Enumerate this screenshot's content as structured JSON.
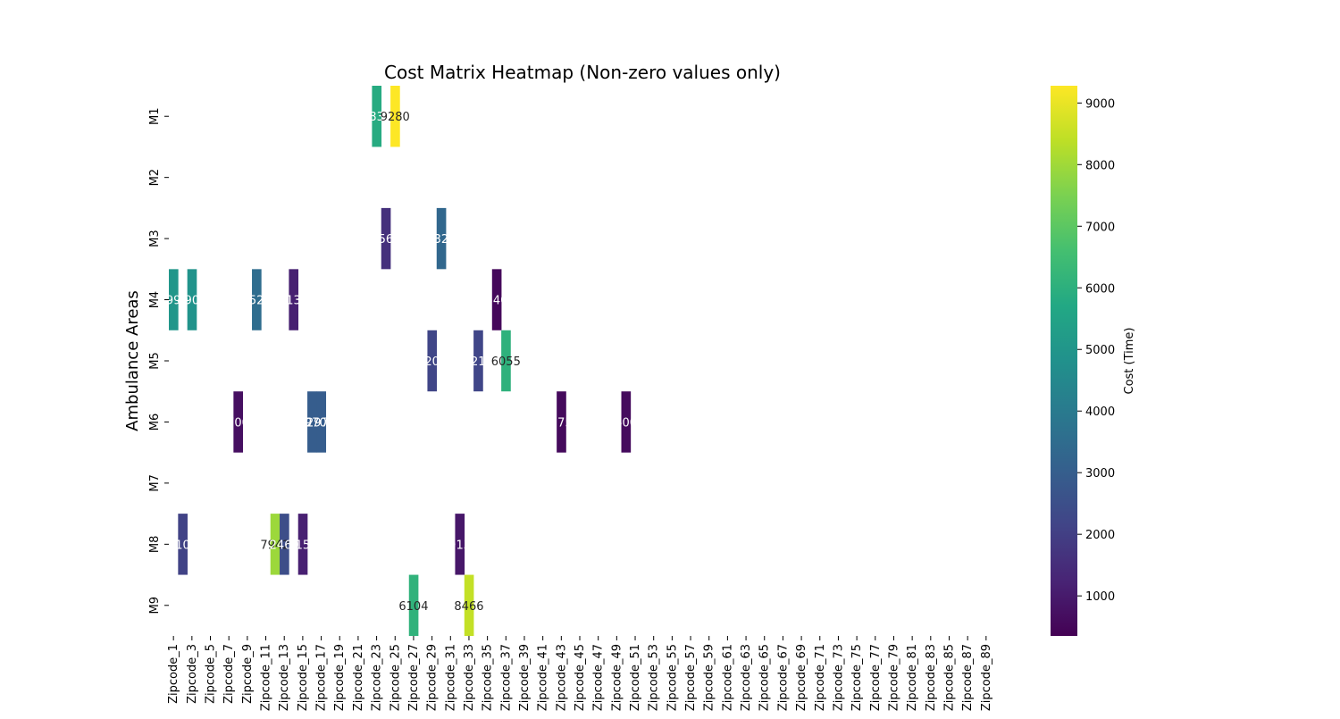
{
  "chart_data": {
    "type": "heatmap",
    "title": "Cost Matrix Heatmap (Non-zero values only)",
    "ylabel": "Ambulance Areas",
    "xlabel": "",
    "rows": [
      "M1",
      "M2",
      "M3",
      "M4",
      "M5",
      "M6",
      "M7",
      "M8",
      "M9"
    ],
    "columns_count": 89,
    "column_prefix": "Zipcode_",
    "xtick_labels": [
      "Zipcode_1",
      "Zipcode_3",
      "Zipcode_5",
      "Zipcode_7",
      "Zipcode_9",
      "Zipcode_11",
      "Zipcode_13",
      "Zipcode_15",
      "Zipcode_17",
      "Zipcode_19",
      "Zipcode_21",
      "Zipcode_23",
      "Zipcode_25",
      "Zipcode_27",
      "Zipcode_29",
      "Zipcode_31",
      "Zipcode_33",
      "Zipcode_35",
      "Zipcode_37",
      "Zipcode_39",
      "Zipcode_41",
      "Zipcode_43",
      "Zipcode_45",
      "Zipcode_47",
      "Zipcode_49",
      "Zipcode_51",
      "Zipcode_53",
      "Zipcode_55",
      "Zipcode_57",
      "Zipcode_59",
      "Zipcode_61",
      "Zipcode_63",
      "Zipcode_65",
      "Zipcode_67",
      "Zipcode_69",
      "Zipcode_71",
      "Zipcode_73",
      "Zipcode_75",
      "Zipcode_77",
      "Zipcode_79",
      "Zipcode_81",
      "Zipcode_83",
      "Zipcode_85",
      "Zipcode_87",
      "Zipcode_89"
    ],
    "cells": [
      {
        "row": "M1",
        "col": 23,
        "value": 5832
      },
      {
        "row": "M1",
        "col": 25,
        "value": 9280
      },
      {
        "row": "M3",
        "col": 24,
        "value": 1566
      },
      {
        "row": "M3",
        "col": 30,
        "value": 3328
      },
      {
        "row": "M4",
        "col": 1,
        "value": 4990
      },
      {
        "row": "M4",
        "col": 3,
        "value": 4902
      },
      {
        "row": "M4",
        "col": 10,
        "value": 3529
      },
      {
        "row": "M4",
        "col": 14,
        "value": 1130
      },
      {
        "row": "M4",
        "col": 36,
        "value": 540
      },
      {
        "row": "M5",
        "col": 29,
        "value": 2205
      },
      {
        "row": "M5",
        "col": 34,
        "value": 2214
      },
      {
        "row": "M5",
        "col": 37,
        "value": 6055
      },
      {
        "row": "M6",
        "col": 8,
        "value": 700
      },
      {
        "row": "M6",
        "col": 16,
        "value": 2970
      },
      {
        "row": "M6",
        "col": 17,
        "value": 2970
      },
      {
        "row": "M6",
        "col": 43,
        "value": 575
      },
      {
        "row": "M6",
        "col": 50,
        "value": 600
      },
      {
        "row": "M8",
        "col": 2,
        "value": 2107
      },
      {
        "row": "M8",
        "col": 12,
        "value": 7942
      },
      {
        "row": "M8",
        "col": 13,
        "value": 2460
      },
      {
        "row": "M8",
        "col": 15,
        "value": 1151
      },
      {
        "row": "M8",
        "col": 32,
        "value": 913
      },
      {
        "row": "M9",
        "col": 27,
        "value": 6104
      },
      {
        "row": "M9",
        "col": 33,
        "value": 8466
      }
    ],
    "colorbar": {
      "label": "Cost (Time)",
      "min": 350,
      "max": 9280,
      "ticks": [
        1000,
        2000,
        3000,
        4000,
        5000,
        6000,
        7000,
        8000,
        9000
      ],
      "colormap": "viridis"
    }
  }
}
